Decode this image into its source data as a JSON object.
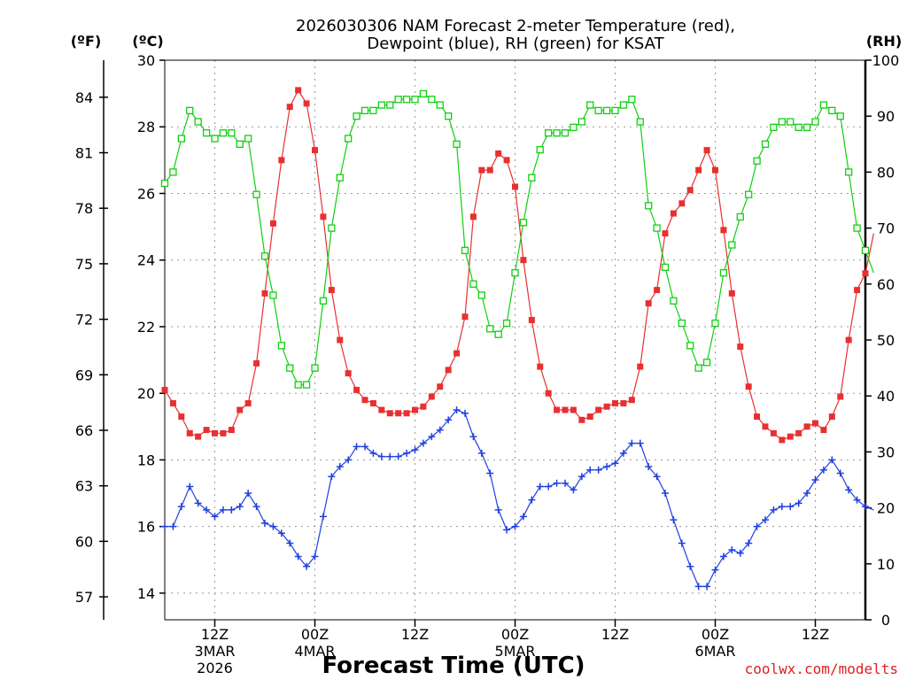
{
  "title_line1": "2026030306 NAM Forecast 2-meter Temperature (red),",
  "title_line2": "Dewpoint (blue), RH (green) for KSAT",
  "unit_f": "(ºF)",
  "unit_c": "(ºC)",
  "unit_rh": "(RH)",
  "xlabel": "Forecast Time (UTC)",
  "source": "coolwx.com/modelts",
  "colors": {
    "temp": "#e83030",
    "dew": "#2040e0",
    "rh": "#10d010",
    "source": "#e02020",
    "grid": "#999999"
  },
  "chart_data": {
    "type": "line",
    "x_unit": "forecast hour (first point = 2026-03-03 06Z)",
    "x_range": [
      0,
      84
    ],
    "ylim_c": [
      13.2,
      30
    ],
    "ylim_rh": [
      0,
      100
    ],
    "f_ticks": [
      "57",
      "60",
      "63",
      "66",
      "69",
      "72",
      "75",
      "78",
      "81",
      "84"
    ],
    "c_ticks": [
      "14",
      "16",
      "18",
      "20",
      "22",
      "24",
      "26",
      "28",
      "30"
    ],
    "rh_ticks": [
      "0",
      "10",
      "20",
      "30",
      "40",
      "50",
      "60",
      "70",
      "80",
      "90",
      "100"
    ],
    "x_ticks": [
      {
        "hour": 6,
        "label": "12Z",
        "sub1": "3MAR",
        "sub2": "2026"
      },
      {
        "hour": 18,
        "label": "00Z",
        "sub1": "4MAR",
        "sub2": ""
      },
      {
        "hour": 30,
        "label": "12Z",
        "sub1": "",
        "sub2": ""
      },
      {
        "hour": 42,
        "label": "00Z",
        "sub1": "5MAR",
        "sub2": ""
      },
      {
        "hour": 54,
        "label": "12Z",
        "sub1": "",
        "sub2": ""
      },
      {
        "hour": 66,
        "label": "00Z",
        "sub1": "6MAR",
        "sub2": ""
      },
      {
        "hour": 78,
        "label": "12Z",
        "sub1": "",
        "sub2": ""
      }
    ],
    "series": [
      {
        "name": "2-meter Temperature",
        "axis": "c",
        "color": "#e83030",
        "marker": "filled-square",
        "values": [
          20.1,
          19.7,
          19.3,
          18.8,
          18.7,
          18.9,
          18.8,
          18.8,
          18.9,
          19.5,
          19.7,
          20.9,
          23.0,
          25.1,
          27.0,
          28.6,
          29.1,
          28.7,
          27.3,
          25.3,
          23.1,
          21.6,
          20.6,
          20.1,
          19.8,
          19.7,
          19.5,
          19.4,
          19.4,
          19.4,
          19.5,
          19.6,
          19.9,
          20.2,
          20.7,
          21.2,
          22.3,
          25.3,
          26.7,
          26.7,
          27.2,
          27.0,
          26.2,
          24.0,
          22.2,
          20.8,
          20.0,
          19.5,
          19.5,
          19.5,
          19.2,
          19.3,
          19.5,
          19.6,
          19.7,
          19.7,
          19.8,
          20.8,
          22.7,
          23.1,
          24.8,
          25.4,
          25.7,
          26.1,
          26.7,
          27.3,
          26.7,
          24.9,
          23.0,
          21.4,
          20.2,
          19.3,
          19.0,
          18.8,
          18.6,
          18.7,
          18.8,
          19.0,
          19.1,
          18.9,
          19.3,
          19.9,
          21.6,
          23.1,
          23.6,
          24.8
        ]
      },
      {
        "name": "Dewpoint",
        "axis": "c",
        "color": "#2040e0",
        "marker": "plus",
        "values": [
          16.0,
          16.0,
          16.6,
          17.2,
          16.7,
          16.5,
          16.3,
          16.5,
          16.5,
          16.6,
          17.0,
          16.6,
          16.1,
          16.0,
          15.8,
          15.5,
          15.1,
          14.8,
          15.1,
          16.3,
          17.5,
          17.8,
          18.0,
          18.4,
          18.4,
          18.2,
          18.1,
          18.1,
          18.1,
          18.2,
          18.3,
          18.5,
          18.7,
          18.9,
          19.2,
          19.5,
          19.4,
          18.7,
          18.2,
          17.6,
          16.5,
          15.9,
          16.0,
          16.3,
          16.8,
          17.2,
          17.2,
          17.3,
          17.3,
          17.1,
          17.5,
          17.7,
          17.7,
          17.8,
          17.9,
          18.2,
          18.5,
          18.5,
          17.8,
          17.5,
          17.0,
          16.2,
          15.5,
          14.8,
          14.2,
          14.2,
          14.7,
          15.1,
          15.3,
          15.2,
          15.5,
          16.0,
          16.2,
          16.5,
          16.6,
          16.6,
          16.7,
          17.0,
          17.4,
          17.7,
          18.0,
          17.6,
          17.1,
          16.8,
          16.6,
          16.5
        ]
      },
      {
        "name": "RH",
        "axis": "rh",
        "color": "#10d010",
        "marker": "open-square",
        "values": [
          78,
          80,
          86,
          91,
          89,
          87,
          86,
          87,
          87,
          85,
          86,
          76,
          65,
          58,
          49,
          45,
          42,
          42,
          45,
          57,
          70,
          79,
          86,
          90,
          91,
          91,
          92,
          92,
          93,
          93,
          93,
          94,
          93,
          92,
          90,
          85,
          66,
          60,
          58,
          52,
          51,
          53,
          62,
          71,
          79,
          84,
          87,
          87,
          87,
          88,
          89,
          92,
          91,
          91,
          91,
          92,
          93,
          89,
          74,
          70,
          63,
          57,
          53,
          49,
          45,
          46,
          53,
          62,
          67,
          72,
          76,
          82,
          85,
          88,
          89,
          89,
          88,
          88,
          89,
          92,
          91,
          90,
          80,
          70,
          66,
          62
        ]
      }
    ]
  }
}
